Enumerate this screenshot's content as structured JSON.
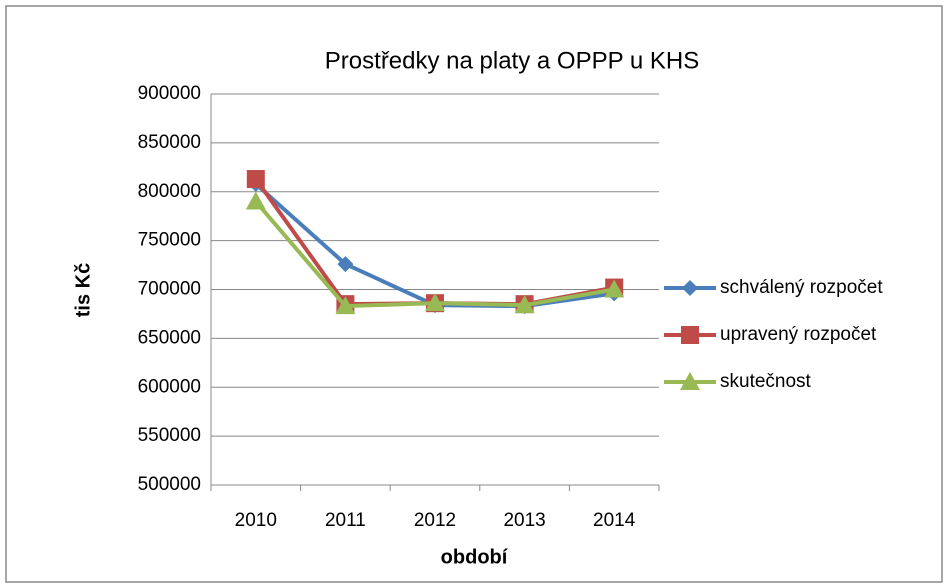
{
  "chart_data": {
    "type": "line",
    "title": "Prostředky na platy a OPPP u KHS",
    "x_label": "období",
    "y_label": "tis Kč",
    "categories": [
      "2010",
      "2011",
      "2012",
      "2013",
      "2014"
    ],
    "series": [
      {
        "name": "schválený rozpočet",
        "color": "#4a7ebb",
        "marker": "diamond",
        "values": [
          808000,
          726000,
          684000,
          683000,
          696000
        ]
      },
      {
        "name": "upravený rozpočet",
        "color": "#be4b48",
        "marker": "square",
        "values": [
          813000,
          685000,
          686000,
          685000,
          702000
        ]
      },
      {
        "name": "skutečnost",
        "color": "#98b954",
        "marker": "triangle",
        "values": [
          790000,
          683000,
          686000,
          684000,
          700000
        ]
      }
    ],
    "ylim": [
      500000,
      900000
    ],
    "yticks": [
      500000,
      550000,
      600000,
      650000,
      700000,
      750000,
      800000,
      850000,
      900000
    ],
    "grid": true,
    "legend": "right"
  }
}
